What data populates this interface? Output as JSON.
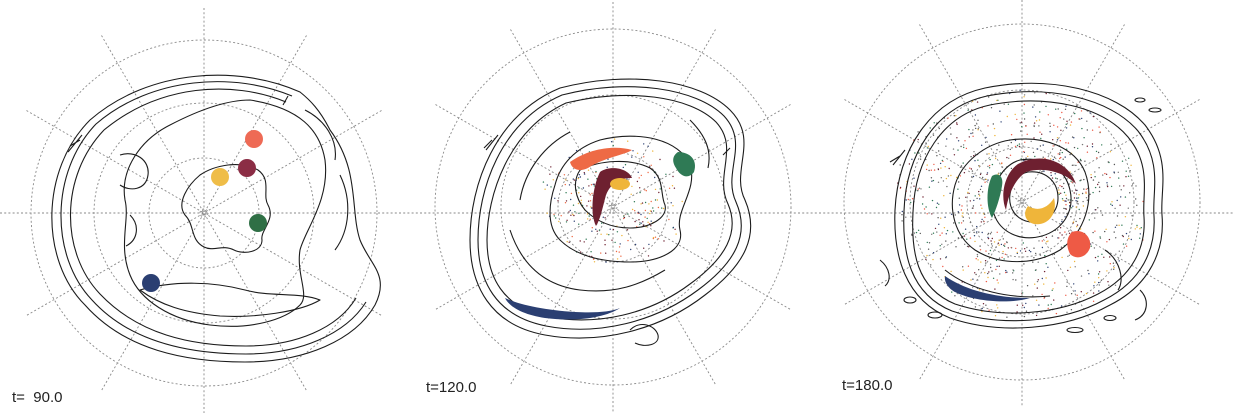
{
  "panels": [
    {
      "time_label": "t=  90.0",
      "blobs": [
        {
          "name": "orange",
          "color": "#ee6a55"
        },
        {
          "name": "maroon",
          "color": "#8b2d45"
        },
        {
          "name": "yellow",
          "color": "#efbd48"
        },
        {
          "name": "green",
          "color": "#2f6f45"
        },
        {
          "name": "navy",
          "color": "#2b3f72"
        }
      ]
    },
    {
      "time_label": "t=120.0",
      "blobs": [
        {
          "name": "orange",
          "color": "#ee6a45"
        },
        {
          "name": "maroon",
          "color": "#6e2030"
        },
        {
          "name": "yellow",
          "color": "#efb53a"
        },
        {
          "name": "green",
          "color": "#2f7a55"
        },
        {
          "name": "navy",
          "color": "#2b3f72"
        }
      ]
    },
    {
      "time_label": "t=180.0",
      "blobs": [
        {
          "name": "orange",
          "color": "#ee5a45"
        },
        {
          "name": "maroon",
          "color": "#6e2030"
        },
        {
          "name": "yellow",
          "color": "#efb53a"
        },
        {
          "name": "green",
          "color": "#2f7a55"
        },
        {
          "name": "navy",
          "color": "#2b3f72"
        }
      ]
    }
  ]
}
